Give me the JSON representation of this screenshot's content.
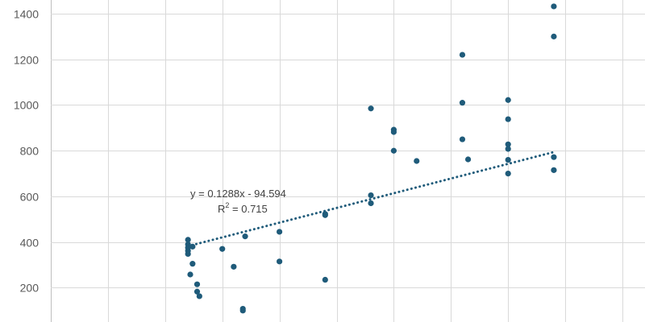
{
  "chart_data": {
    "type": "scatter",
    "title": "",
    "xlabel": "",
    "ylabel": "",
    "y_ticks": [
      200,
      400,
      600,
      800,
      1000,
      1200,
      1400
    ],
    "xlim": [
      2500,
      7500
    ],
    "ylim": [
      50,
      1460
    ],
    "grid": true,
    "legend": "none",
    "colors": {
      "marker": "#1f5b7a",
      "trendline": "#1f5b7a",
      "grid": "#d9d9d9",
      "text": "#595959"
    },
    "series": [
      {
        "points": [
          {
            "x": 3700,
            "y": 410
          },
          {
            "x": 3700,
            "y": 390
          },
          {
            "x": 3700,
            "y": 375
          },
          {
            "x": 3700,
            "y": 362
          },
          {
            "x": 3700,
            "y": 348
          },
          {
            "x": 3720,
            "y": 258
          },
          {
            "x": 3740,
            "y": 380
          },
          {
            "x": 3740,
            "y": 305
          },
          {
            "x": 3780,
            "y": 215
          },
          {
            "x": 3780,
            "y": 183
          },
          {
            "x": 3800,
            "y": 163
          },
          {
            "x": 4000,
            "y": 370
          },
          {
            "x": 4100,
            "y": 292
          },
          {
            "x": 4180,
            "y": 108
          },
          {
            "x": 4180,
            "y": 100
          },
          {
            "x": 4200,
            "y": 425
          },
          {
            "x": 4500,
            "y": 445
          },
          {
            "x": 4500,
            "y": 315
          },
          {
            "x": 4900,
            "y": 523
          },
          {
            "x": 4900,
            "y": 518
          },
          {
            "x": 4900,
            "y": 235
          },
          {
            "x": 5300,
            "y": 985
          },
          {
            "x": 5300,
            "y": 605
          },
          {
            "x": 5300,
            "y": 570
          },
          {
            "x": 5500,
            "y": 892
          },
          {
            "x": 5500,
            "y": 882
          },
          {
            "x": 5500,
            "y": 800
          },
          {
            "x": 5700,
            "y": 755
          },
          {
            "x": 6100,
            "y": 1220
          },
          {
            "x": 6100,
            "y": 1010
          },
          {
            "x": 6100,
            "y": 850
          },
          {
            "x": 6150,
            "y": 762
          },
          {
            "x": 6500,
            "y": 1022
          },
          {
            "x": 6500,
            "y": 938
          },
          {
            "x": 6500,
            "y": 828
          },
          {
            "x": 6500,
            "y": 808
          },
          {
            "x": 6500,
            "y": 760
          },
          {
            "x": 6500,
            "y": 700
          },
          {
            "x": 6900,
            "y": 1432
          },
          {
            "x": 6900,
            "y": 1300
          },
          {
            "x": 6900,
            "y": 772
          },
          {
            "x": 6900,
            "y": 715
          }
        ]
      }
    ],
    "trendline": {
      "type": "linear",
      "slope": 0.1288,
      "intercept": -94.594,
      "x_range": [
        3700,
        6900
      ],
      "equation_label": "y = 0.1288x - 94.594",
      "r2_prefix": "R",
      "r2_sup": "2",
      "r2_suffix": " = 0.715"
    }
  }
}
